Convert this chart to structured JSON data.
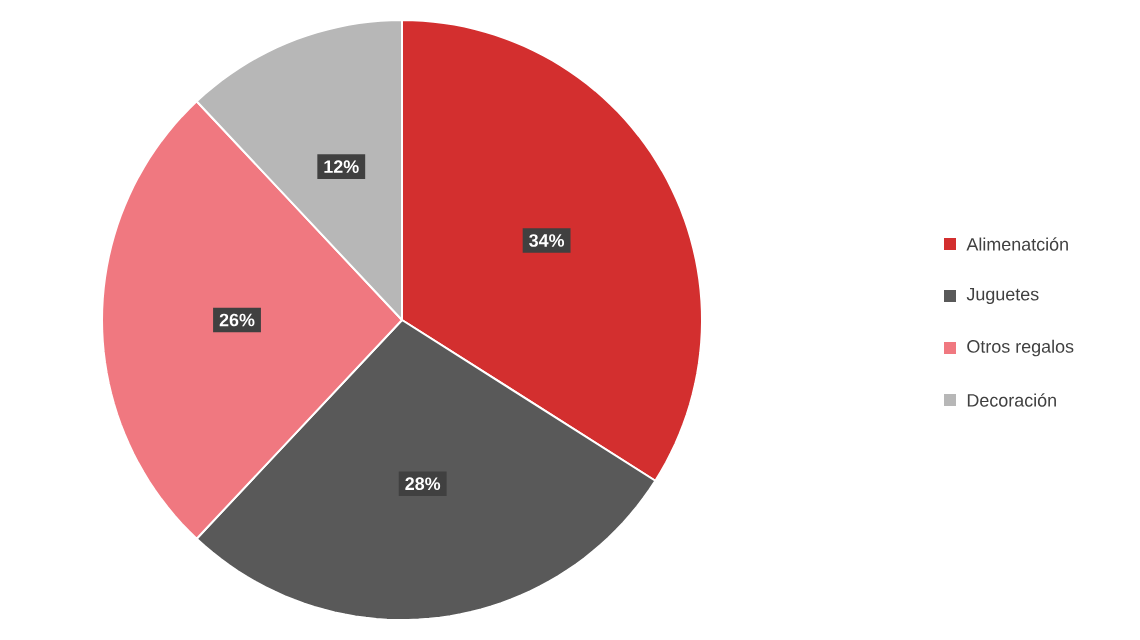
{
  "chart_data": {
    "type": "pie",
    "categories": [
      "Alimenatción",
      "Juguetes",
      "Otros regalos",
      "Decoración"
    ],
    "values": [
      34,
      28,
      26,
      12
    ],
    "value_labels": [
      "34%",
      "28%",
      "26%",
      "12%"
    ],
    "colors": [
      "#d32f2f",
      "#595959",
      "#f07880",
      "#b7b7b7"
    ],
    "legend": "right"
  }
}
